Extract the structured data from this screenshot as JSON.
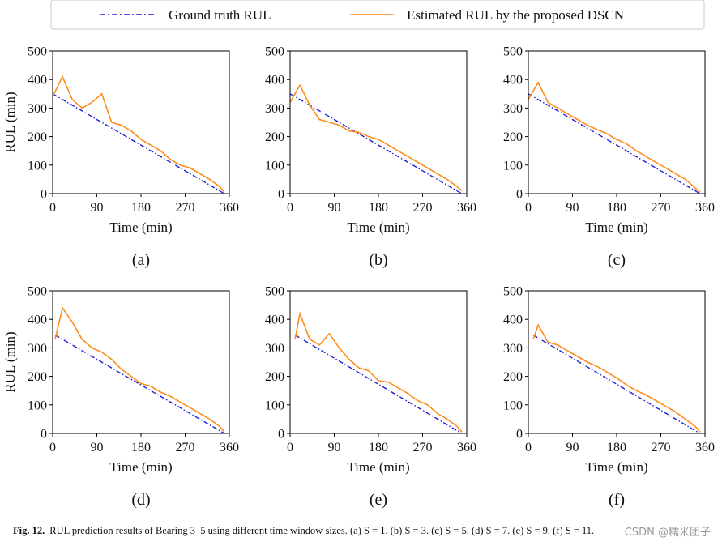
{
  "colors": {
    "ground_truth": "#1f1fd6",
    "estimate": "#ff8c1a",
    "axis": "#000000",
    "legend_border": "#c8c8c8"
  },
  "legend": {
    "items": [
      {
        "label": "Ground truth RUL",
        "style": "dash-dot",
        "color": "#1f1fd6"
      },
      {
        "label": "Estimated RUL by the proposed DSCN",
        "style": "solid",
        "color": "#ff8c1a"
      }
    ],
    "placement": "top-center"
  },
  "caption": {
    "label": "Fig. 12.",
    "text": "RUL prediction results of Bearing 3_5 using different time window sizes. (a) S = 1. (b) S = 3. (c) S = 5. (d) S = 7. (e) S = 9. (f) S = 11."
  },
  "watermark": "CSDN @糯米团子",
  "chart_data": [
    {
      "panel": "(a)",
      "type": "line",
      "xlabel": "Time (min)",
      "ylabel": "RUL (min)",
      "xlim": [
        0,
        360
      ],
      "ylim": [
        0,
        500
      ],
      "xticks": [
        0,
        90,
        180,
        270,
        360
      ],
      "yticks": [
        0,
        100,
        200,
        300,
        400,
        500
      ],
      "series": [
        {
          "name": "Ground truth RUL",
          "x": [
            0,
            350
          ],
          "y": [
            350,
            0
          ]
        },
        {
          "name": "Estimated RUL by the proposed DSCN",
          "x": [
            0,
            20,
            40,
            60,
            80,
            100,
            120,
            140,
            160,
            180,
            200,
            220,
            240,
            260,
            280,
            300,
            320,
            340,
            350
          ],
          "y": [
            340,
            410,
            330,
            300,
            320,
            350,
            250,
            240,
            220,
            190,
            170,
            150,
            120,
            100,
            90,
            70,
            50,
            25,
            5
          ]
        }
      ]
    },
    {
      "panel": "(b)",
      "type": "line",
      "xlabel": "Time (min)",
      "ylabel": "",
      "xlim": [
        0,
        360
      ],
      "ylim": [
        0,
        500
      ],
      "xticks": [
        0,
        90,
        180,
        270,
        360
      ],
      "yticks": [
        0,
        100,
        200,
        300,
        400,
        500
      ],
      "series": [
        {
          "name": "Ground truth RUL",
          "x": [
            0,
            350
          ],
          "y": [
            350,
            0
          ]
        },
        {
          "name": "Estimated RUL by the proposed DSCN",
          "x": [
            0,
            20,
            40,
            60,
            80,
            100,
            120,
            140,
            160,
            180,
            200,
            220,
            240,
            260,
            280,
            300,
            320,
            340,
            350
          ],
          "y": [
            320,
            380,
            310,
            260,
            250,
            240,
            220,
            215,
            200,
            190,
            170,
            150,
            130,
            110,
            90,
            70,
            50,
            25,
            10
          ]
        }
      ]
    },
    {
      "panel": "(c)",
      "type": "line",
      "xlabel": "Time (min)",
      "ylabel": "",
      "xlim": [
        0,
        360
      ],
      "ylim": [
        0,
        500
      ],
      "xticks": [
        0,
        90,
        180,
        270,
        360
      ],
      "yticks": [
        0,
        100,
        200,
        300,
        400,
        500
      ],
      "series": [
        {
          "name": "Ground truth RUL",
          "x": [
            0,
            350
          ],
          "y": [
            350,
            0
          ]
        },
        {
          "name": "Estimated RUL by the proposed DSCN",
          "x": [
            0,
            20,
            40,
            60,
            80,
            100,
            120,
            140,
            160,
            180,
            200,
            220,
            240,
            260,
            280,
            300,
            320,
            340,
            350
          ],
          "y": [
            330,
            390,
            320,
            300,
            280,
            260,
            240,
            225,
            210,
            190,
            175,
            150,
            130,
            110,
            90,
            70,
            50,
            20,
            5
          ]
        }
      ]
    },
    {
      "panel": "(d)",
      "type": "line",
      "xlabel": "Time (min)",
      "ylabel": "RUL (min)",
      "xlim": [
        0,
        360
      ],
      "ylim": [
        0,
        500
      ],
      "xticks": [
        0,
        90,
        180,
        270,
        360
      ],
      "yticks": [
        0,
        100,
        200,
        300,
        400,
        500
      ],
      "series": [
        {
          "name": "Ground truth RUL",
          "x": [
            5,
            350
          ],
          "y": [
            345,
            0
          ]
        },
        {
          "name": "Estimated RUL by the proposed DSCN",
          "x": [
            5,
            20,
            40,
            60,
            80,
            100,
            120,
            140,
            160,
            180,
            200,
            220,
            240,
            260,
            280,
            300,
            320,
            340,
            350
          ],
          "y": [
            330,
            440,
            390,
            330,
            300,
            285,
            260,
            225,
            200,
            175,
            165,
            145,
            130,
            110,
            90,
            70,
            50,
            25,
            5
          ]
        }
      ]
    },
    {
      "panel": "(e)",
      "type": "line",
      "xlabel": "Time (min)",
      "ylabel": "",
      "xlim": [
        0,
        360
      ],
      "ylim": [
        0,
        500
      ],
      "xticks": [
        0,
        90,
        180,
        270,
        360
      ],
      "yticks": [
        0,
        100,
        200,
        300,
        400,
        500
      ],
      "series": [
        {
          "name": "Ground truth RUL",
          "x": [
            10,
            350
          ],
          "y": [
            345,
            0
          ]
        },
        {
          "name": "Estimated RUL by the proposed DSCN",
          "x": [
            10,
            20,
            40,
            60,
            80,
            100,
            120,
            140,
            160,
            180,
            200,
            220,
            240,
            260,
            280,
            300,
            320,
            340,
            350
          ],
          "y": [
            330,
            420,
            330,
            310,
            350,
            300,
            260,
            230,
            220,
            185,
            180,
            160,
            140,
            115,
            100,
            70,
            50,
            25,
            5
          ]
        }
      ]
    },
    {
      "panel": "(f)",
      "type": "line",
      "xlabel": "Time (min)",
      "ylabel": "",
      "xlim": [
        0,
        360
      ],
      "ylim": [
        0,
        500
      ],
      "xticks": [
        0,
        90,
        180,
        270,
        360
      ],
      "yticks": [
        0,
        100,
        200,
        300,
        400,
        500
      ],
      "series": [
        {
          "name": "Ground truth RUL",
          "x": [
            10,
            350
          ],
          "y": [
            345,
            0
          ]
        },
        {
          "name": "Estimated RUL by the proposed DSCN",
          "x": [
            10,
            20,
            40,
            60,
            80,
            100,
            120,
            140,
            160,
            180,
            200,
            220,
            240,
            260,
            280,
            300,
            320,
            340,
            350
          ],
          "y": [
            330,
            380,
            320,
            310,
            290,
            270,
            250,
            235,
            215,
            195,
            170,
            150,
            135,
            115,
            95,
            75,
            50,
            25,
            5
          ]
        }
      ]
    }
  ]
}
